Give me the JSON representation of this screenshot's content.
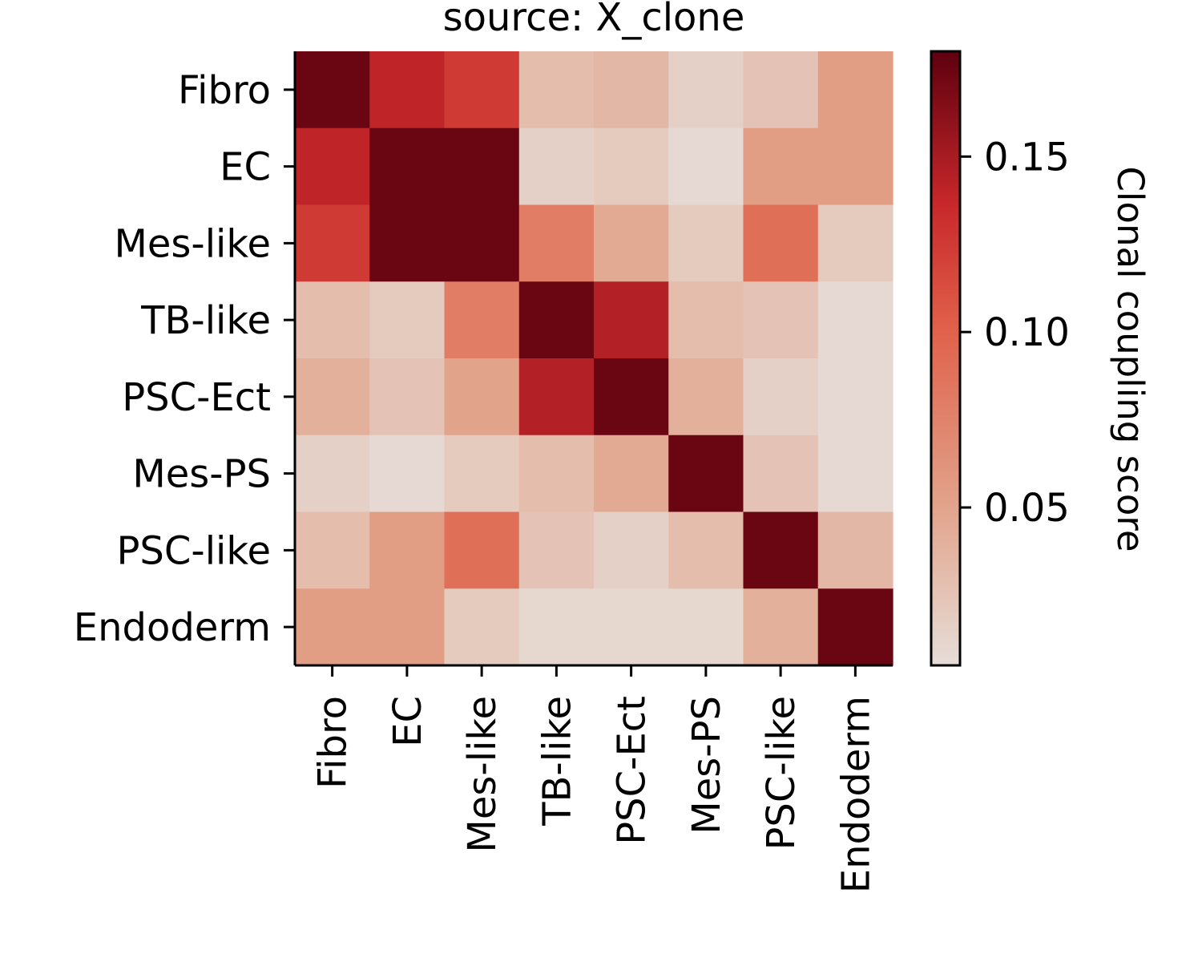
{
  "chart_data": {
    "type": "heatmap",
    "title": "source: X_clone",
    "rows": [
      "Fibro",
      "EC",
      "Mes-like",
      "TB-like",
      "PSC-Ect",
      "Mes-PS",
      "PSC-like",
      "Endoderm"
    ],
    "columns": [
      "Fibro",
      "EC",
      "Mes-like",
      "TB-like",
      "PSC-Ect",
      "Mes-PS",
      "PSC-like",
      "Endoderm"
    ],
    "values": [
      [
        0.175,
        0.14,
        0.125,
        0.03,
        0.035,
        0.015,
        0.025,
        0.055
      ],
      [
        0.14,
        0.175,
        0.175,
        0.015,
        0.02,
        0.008,
        0.055,
        0.055
      ],
      [
        0.125,
        0.175,
        0.175,
        0.08,
        0.045,
        0.02,
        0.09,
        0.02
      ],
      [
        0.03,
        0.02,
        0.08,
        0.175,
        0.145,
        0.03,
        0.025,
        0.008
      ],
      [
        0.04,
        0.025,
        0.05,
        0.145,
        0.175,
        0.04,
        0.015,
        0.008
      ],
      [
        0.015,
        0.008,
        0.02,
        0.03,
        0.045,
        0.175,
        0.025,
        0.008
      ],
      [
        0.03,
        0.055,
        0.09,
        0.025,
        0.015,
        0.03,
        0.175,
        0.035
      ],
      [
        0.055,
        0.055,
        0.02,
        0.01,
        0.01,
        0.01,
        0.04,
        0.175
      ]
    ],
    "colorbar": {
      "label": "Clonal coupling score",
      "min": 0.005,
      "max": 0.18,
      "ticks": [
        0.05,
        0.1,
        0.15
      ],
      "tick_labels": [
        "0.05",
        "0.10",
        "0.15"
      ]
    },
    "colors": {
      "low": "#e6ddd8",
      "mid_low": "#e2a58d",
      "mid": "#e0604a",
      "mid_high": "#c8282a",
      "high": "#5e000f"
    },
    "grid": false,
    "colormap": "light-gray to dark red"
  }
}
